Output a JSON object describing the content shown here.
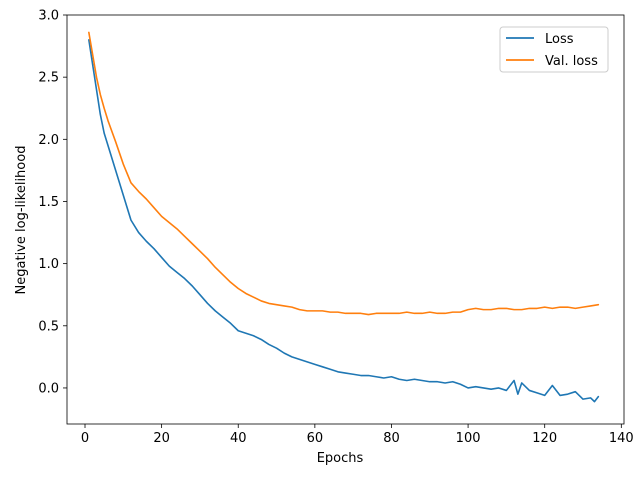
{
  "chart_data": {
    "type": "line",
    "xlabel": "Epochs",
    "ylabel": "Negative log-likelihood",
    "xlim": [
      -4.7,
      140.7
    ],
    "ylim": [
      -0.29,
      3.0
    ],
    "xticks": [
      0,
      20,
      40,
      60,
      80,
      100,
      120,
      140
    ],
    "yticks": [
      0.0,
      0.5,
      1.0,
      1.5,
      2.0,
      2.5,
      3.0
    ],
    "xtick_labels": [
      "0",
      "20",
      "40",
      "60",
      "80",
      "100",
      "120",
      "140"
    ],
    "ytick_labels": [
      "0.0",
      "0.5",
      "1.0",
      "1.5",
      "2.0",
      "2.5",
      "3.0"
    ],
    "grid": false,
    "legend_position": "top-right",
    "series": [
      {
        "name": "Loss",
        "color": "#1f77b4",
        "x": [
          1,
          2,
          3,
          4,
          5,
          6,
          8,
          10,
          12,
          14,
          16,
          18,
          20,
          22,
          24,
          26,
          28,
          30,
          32,
          34,
          36,
          38,
          40,
          42,
          44,
          46,
          48,
          50,
          52,
          54,
          56,
          58,
          60,
          62,
          64,
          66,
          68,
          70,
          72,
          74,
          76,
          78,
          80,
          82,
          84,
          86,
          88,
          90,
          92,
          94,
          96,
          98,
          100,
          102,
          104,
          106,
          108,
          110,
          112,
          113,
          114,
          116,
          118,
          120,
          122,
          124,
          126,
          128,
          130,
          132,
          133,
          134
        ],
        "y": [
          2.8,
          2.6,
          2.4,
          2.2,
          2.05,
          1.95,
          1.75,
          1.55,
          1.35,
          1.25,
          1.18,
          1.12,
          1.05,
          0.98,
          0.93,
          0.88,
          0.82,
          0.75,
          0.68,
          0.62,
          0.57,
          0.52,
          0.46,
          0.44,
          0.42,
          0.39,
          0.35,
          0.32,
          0.28,
          0.25,
          0.23,
          0.21,
          0.19,
          0.17,
          0.15,
          0.13,
          0.12,
          0.11,
          0.1,
          0.1,
          0.09,
          0.08,
          0.09,
          0.07,
          0.06,
          0.07,
          0.06,
          0.05,
          0.05,
          0.04,
          0.05,
          0.03,
          0.0,
          0.01,
          0.0,
          -0.01,
          0.0,
          -0.02,
          0.06,
          -0.05,
          0.04,
          -0.02,
          -0.04,
          -0.06,
          0.02,
          -0.06,
          -0.05,
          -0.03,
          -0.09,
          -0.08,
          -0.11,
          -0.07
        ]
      },
      {
        "name": "Val. loss",
        "color": "#ff7f0e",
        "x": [
          1,
          2,
          3,
          4,
          5,
          6,
          8,
          10,
          12,
          14,
          16,
          18,
          20,
          22,
          24,
          26,
          28,
          30,
          32,
          34,
          36,
          38,
          40,
          42,
          44,
          46,
          48,
          50,
          52,
          54,
          56,
          58,
          60,
          62,
          64,
          66,
          68,
          70,
          72,
          74,
          76,
          78,
          80,
          82,
          84,
          86,
          88,
          90,
          92,
          94,
          96,
          98,
          100,
          102,
          104,
          106,
          108,
          110,
          112,
          114,
          116,
          118,
          120,
          122,
          124,
          126,
          128,
          130,
          132,
          134
        ],
        "y": [
          2.86,
          2.68,
          2.5,
          2.36,
          2.25,
          2.15,
          1.98,
          1.8,
          1.65,
          1.58,
          1.52,
          1.45,
          1.38,
          1.33,
          1.28,
          1.22,
          1.16,
          1.1,
          1.04,
          0.97,
          0.91,
          0.85,
          0.8,
          0.76,
          0.73,
          0.7,
          0.68,
          0.67,
          0.66,
          0.65,
          0.63,
          0.62,
          0.62,
          0.62,
          0.61,
          0.61,
          0.6,
          0.6,
          0.6,
          0.59,
          0.6,
          0.6,
          0.6,
          0.6,
          0.61,
          0.6,
          0.6,
          0.61,
          0.6,
          0.6,
          0.61,
          0.61,
          0.63,
          0.64,
          0.63,
          0.63,
          0.64,
          0.64,
          0.63,
          0.63,
          0.64,
          0.64,
          0.65,
          0.64,
          0.65,
          0.65,
          0.64,
          0.65,
          0.66,
          0.67
        ]
      }
    ]
  }
}
